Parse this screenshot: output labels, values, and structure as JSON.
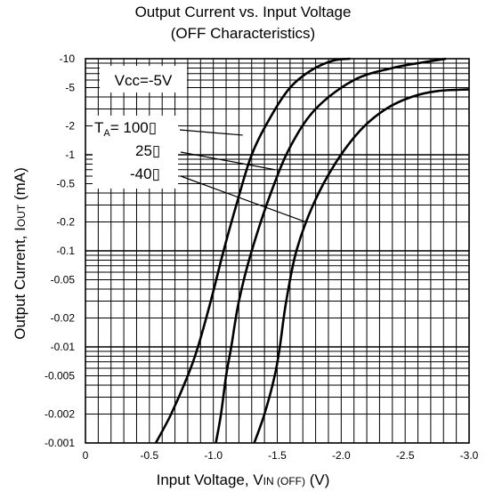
{
  "chart_data": {
    "type": "line",
    "title": [
      "Output Current  vs. Input Voltage",
      "(OFF Characteristics)"
    ],
    "xlabel": {
      "prefix": "Input Voltage, V",
      "sub": "IN (OFF)",
      "suffix": "  (V)"
    },
    "ylabel": {
      "prefix": "Output Current, I",
      "sub": "OUT",
      "suffix": " (mA)"
    },
    "x_scale": "linear",
    "xlim": [
      0,
      -3.0
    ],
    "x_ticks": [
      0,
      -0.5,
      -1.0,
      -1.5,
      -2.0,
      -2.5,
      -3.0
    ],
    "x_tick_labels": [
      "0",
      "-0.5",
      "-1.0",
      "-1.5",
      "-2.0",
      "-2.5",
      "-3.0"
    ],
    "y_scale": "log",
    "ylim": [
      -0.001,
      -10
    ],
    "y_ticks": [
      -10,
      -5,
      -2,
      -1,
      -0.5,
      -0.2,
      -0.1,
      -0.05,
      -0.02,
      -0.01,
      -0.005,
      -0.002,
      -0.001
    ],
    "y_tick_labels": [
      "-10",
      "-5",
      "-2",
      "-1",
      "-0.5",
      "-0.2",
      "-0.1",
      "-0.05",
      "-0.02",
      "-0.01",
      "-0.005",
      "-0.002",
      "-0.001"
    ],
    "grid": true,
    "condition_label": "Vcc=-5V",
    "temperature_labels": [
      "T_A= 100",
      "25",
      "-40"
    ],
    "temperature_unit_glyph": "▯",
    "series": [
      {
        "label_index": 0,
        "x": [
          -0.55,
          -0.67,
          -0.8,
          -0.88,
          -0.98,
          -1.08,
          -1.18,
          -1.3,
          -1.45,
          -1.6,
          -1.76,
          -1.93,
          -2.07
        ],
        "y": [
          -0.001,
          -0.002,
          -0.005,
          -0.01,
          -0.03,
          -0.1,
          -0.3,
          -1.0,
          -2.5,
          -5.0,
          -7.5,
          -9.5,
          -10.0
        ]
      },
      {
        "label_index": 1,
        "x": [
          -1.02,
          -1.06,
          -1.1,
          -1.14,
          -1.2,
          -1.3,
          -1.45,
          -1.6,
          -1.8,
          -2.1,
          -2.4,
          -2.65,
          -2.82
        ],
        "y": [
          -0.001,
          -0.002,
          -0.005,
          -0.01,
          -0.03,
          -0.1,
          -0.4,
          -1.2,
          -3.0,
          -6.0,
          -8.0,
          -9.2,
          -10.0
        ]
      },
      {
        "label_index": 2,
        "x": [
          -1.32,
          -1.4,
          -1.48,
          -1.52,
          -1.57,
          -1.65,
          -1.78,
          -1.95,
          -2.15,
          -2.35,
          -2.55,
          -2.75,
          -3.0
        ],
        "y": [
          -0.001,
          -0.002,
          -0.005,
          -0.01,
          -0.03,
          -0.1,
          -0.3,
          -0.8,
          -1.8,
          -3.0,
          -4.0,
          -4.6,
          -4.8
        ]
      }
    ]
  }
}
